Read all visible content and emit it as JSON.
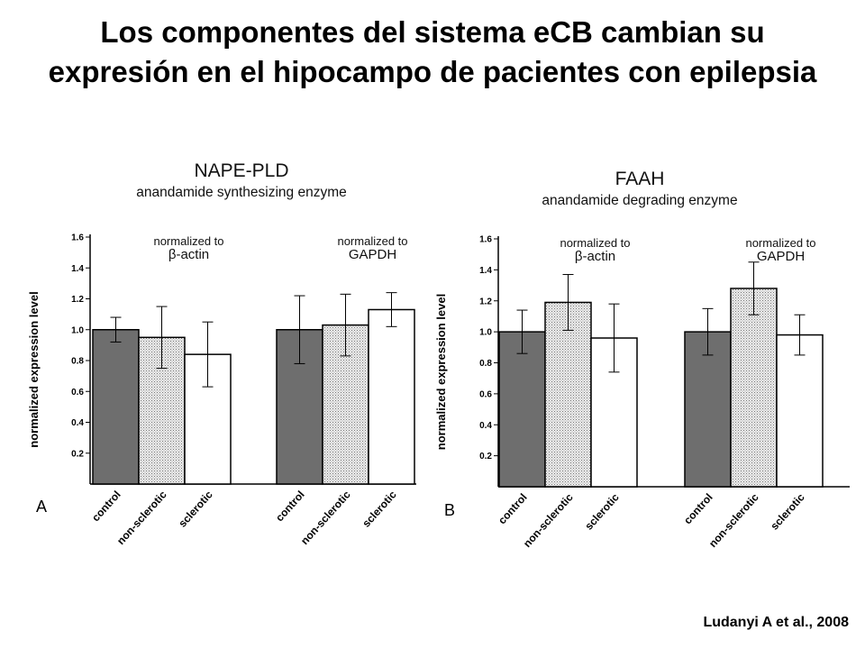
{
  "slide": {
    "title": "Los componentes del sistema eCB cambian su expresión en el hipocampo de pacientes con epilepsia",
    "citation": "Ludanyi A et al., 2008"
  },
  "colors": {
    "control": "#6e6e6e",
    "non_sclerotic": "#d8d8d8",
    "sclerotic": "#ffffff",
    "stroke": "#000000"
  },
  "chart_data": [
    {
      "type": "bar",
      "panel_label": "A",
      "title": "NAPE-PLD",
      "subtitle": "anandamide synthesizing enzyme",
      "ylabel": "normalized expression level",
      "ylim": [
        0,
        1.6
      ],
      "yticks": [
        "0.2",
        "0.4",
        "0.6",
        "0.8",
        "1.0",
        "1.2",
        "1.4",
        "1.6"
      ],
      "groups": [
        {
          "label": "normalized to β-actin",
          "label_lines": [
            "normalized to",
            "β-actin"
          ],
          "categories": [
            "control",
            "non-sclerotic",
            "sclerotic"
          ],
          "values": [
            1.0,
            0.95,
            0.84
          ],
          "errors": [
            0.08,
            0.2,
            0.21
          ]
        },
        {
          "label": "normalized to GAPDH",
          "label_lines": [
            "normalized to",
            "GAPDH"
          ],
          "categories": [
            "control",
            "non-sclerotic",
            "sclerotic"
          ],
          "values": [
            1.0,
            1.03,
            1.13
          ],
          "errors": [
            0.22,
            0.2,
            0.11
          ]
        }
      ]
    },
    {
      "type": "bar",
      "panel_label": "B",
      "title": "FAAH",
      "subtitle": "anandamide degrading enzyme",
      "ylabel": "normalized expression level",
      "ylim": [
        0,
        1.6
      ],
      "yticks": [
        "0.2",
        "0.4",
        "0.6",
        "0.8",
        "1.0",
        "1.2",
        "1.4",
        "1.6"
      ],
      "groups": [
        {
          "label": "normalized to β-actin",
          "label_lines": [
            "normalized to",
            "β-actin"
          ],
          "categories": [
            "control",
            "non-sclerotic",
            "sclerotic"
          ],
          "values": [
            1.0,
            1.19,
            0.96
          ],
          "errors": [
            0.14,
            0.18,
            0.22
          ]
        },
        {
          "label": "normalized to GAPDH",
          "label_lines": [
            "normalized to",
            "GAPDH"
          ],
          "categories": [
            "control",
            "non-sclerotic",
            "sclerotic"
          ],
          "values": [
            1.0,
            1.28,
            0.98
          ],
          "errors": [
            0.15,
            0.17,
            0.13
          ]
        }
      ]
    }
  ]
}
